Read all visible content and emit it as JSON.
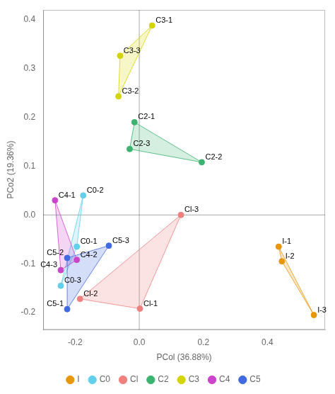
{
  "chart_data": {
    "type": "scatter",
    "xlabel": "PCol (36.88%)",
    "ylabel": "PCo2 (19.36%)",
    "xlim": [
      -0.3,
      0.58
    ],
    "ylim": [
      -0.235,
      0.42
    ],
    "xticks": [
      -0.2,
      {
        "value": 0.0,
        "label": "0.0"
      },
      0.2,
      0.4
    ],
    "yticks": [
      -0.2,
      -0.1,
      {
        "value": 0.0,
        "label": "0.0"
      },
      0.1,
      0.2,
      0.3,
      0.4
    ],
    "grid": false,
    "legend": "bottom",
    "series": [
      {
        "name": "I",
        "color": "#E8960A",
        "x": [
          0.435,
          0.445,
          0.545
        ],
        "values": [
          -0.065,
          -0.095,
          -0.205
        ],
        "labels": [
          "I-1",
          "I-2",
          "I-3"
        ]
      },
      {
        "name": "C0",
        "color": "#62CFEC",
        "x": [
          -0.175,
          -0.195,
          -0.245
        ],
        "values": [
          0.04,
          -0.065,
          -0.145
        ],
        "labels": [
          "C0-2",
          "C0-1",
          "C0-3"
        ]
      },
      {
        "name": "Cl",
        "color": "#F08080",
        "x": [
          0.13,
          -0.185,
          0.002
        ],
        "values": [
          0.0,
          -0.172,
          -0.192
        ],
        "labels": [
          "Cl-3",
          "Cl-2",
          "Cl-1"
        ]
      },
      {
        "name": "C2",
        "color": "#3CB371",
        "x": [
          -0.015,
          -0.03,
          0.195
        ],
        "values": [
          0.19,
          0.135,
          0.108
        ],
        "labels": [
          "C2-1",
          "C2-3",
          "C2-2"
        ]
      },
      {
        "name": "C3",
        "color": "#D4D400",
        "x": [
          0.04,
          -0.06,
          -0.065
        ],
        "values": [
          0.388,
          0.326,
          0.243
        ],
        "labels": [
          "C3-1",
          "C3-3",
          "C3-2"
        ]
      },
      {
        "name": "C4",
        "color": "#CC44CC",
        "x": [
          -0.263,
          -0.195,
          -0.245
        ],
        "values": [
          0.03,
          -0.092,
          -0.113
        ],
        "labels": [
          "C4-1",
          "C4-2",
          "C4-3"
        ]
      },
      {
        "name": "C5",
        "color": "#4169E1",
        "x": [
          -0.095,
          -0.225,
          -0.225
        ],
        "values": [
          -0.063,
          -0.088,
          -0.193
        ],
        "labels": [
          "C5-3",
          "C5-2",
          "C5-1"
        ]
      }
    ]
  }
}
